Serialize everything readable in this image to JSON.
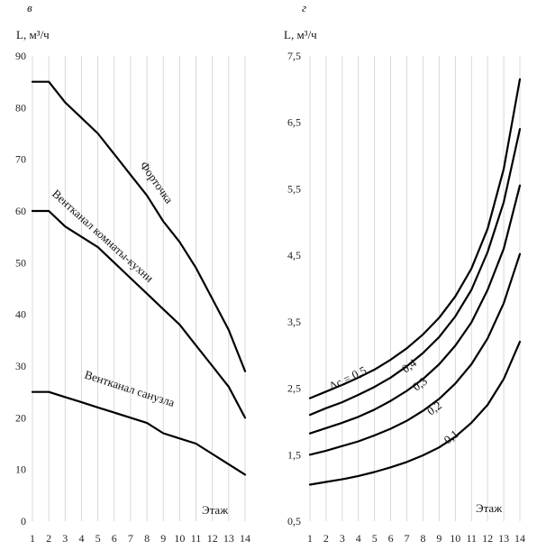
{
  "chart_data": [
    {
      "panel_label": "в",
      "type": "line",
      "ylabel": "L, м³/ч",
      "xlabel": "Этаж",
      "x": [
        1,
        2,
        3,
        4,
        5,
        6,
        7,
        8,
        9,
        10,
        11,
        12,
        13,
        14
      ],
      "x_ticks": [
        "1",
        "2",
        "3",
        "4",
        "5",
        "6",
        "7",
        "8",
        "9",
        "10",
        "11",
        "12",
        "13",
        "14"
      ],
      "y_ticks": [
        "0",
        "10",
        "20",
        "30",
        "40",
        "50",
        "60",
        "70",
        "80",
        "90"
      ],
      "ylim": [
        0,
        90
      ],
      "grid": "vertical",
      "series": [
        {
          "name": "Форточка",
          "values": [
            85,
            85,
            81,
            78,
            75,
            71,
            67,
            63,
            58,
            54,
            49,
            43,
            37,
            29
          ]
        },
        {
          "name": "Вентканал комнаты-кухни",
          "values": [
            60,
            60,
            57,
            55,
            53,
            50,
            47,
            44,
            41,
            38,
            34,
            30,
            26,
            20
          ]
        },
        {
          "name": "Вентканал санузла",
          "values": [
            25,
            25,
            24,
            23,
            22,
            21,
            20,
            19,
            17,
            16,
            15,
            13,
            11,
            9
          ]
        }
      ]
    },
    {
      "panel_label": "г",
      "type": "line",
      "ylabel": "L, м³/ч",
      "xlabel": "Этаж",
      "x": [
        1,
        2,
        3,
        4,
        5,
        6,
        7,
        8,
        9,
        10,
        11,
        12,
        13,
        14
      ],
      "x_ticks": [
        "1",
        "2",
        "3",
        "4",
        "5",
        "6",
        "7",
        "8",
        "9",
        "10",
        "11",
        "12",
        "13",
        "14"
      ],
      "y_ticks": [
        "0,5",
        "1,5",
        "2,5",
        "3,5",
        "4,5",
        "5,5",
        "6,5",
        "7,5"
      ],
      "ylim": [
        0.5,
        7.5
      ],
      "grid": "vertical",
      "series": [
        {
          "name": "Δc = 0,5",
          "values": [
            2.35,
            2.45,
            2.55,
            2.66,
            2.78,
            2.93,
            3.1,
            3.31,
            3.56,
            3.88,
            4.3,
            4.9,
            5.8,
            7.15
          ]
        },
        {
          "name": "0,4",
          "values": [
            2.1,
            2.2,
            2.29,
            2.4,
            2.52,
            2.66,
            2.83,
            3.03,
            3.27,
            3.58,
            3.98,
            4.55,
            5.3,
            6.4
          ]
        },
        {
          "name": "0,3",
          "values": [
            1.82,
            1.9,
            1.98,
            2.07,
            2.18,
            2.31,
            2.46,
            2.64,
            2.86,
            3.14,
            3.49,
            3.98,
            4.6,
            5.55
          ]
        },
        {
          "name": "0,2",
          "values": [
            1.5,
            1.56,
            1.63,
            1.7,
            1.79,
            1.89,
            2.01,
            2.16,
            2.34,
            2.57,
            2.86,
            3.25,
            3.78,
            4.52
          ]
        },
        {
          "name": "0,1",
          "values": [
            1.05,
            1.09,
            1.13,
            1.18,
            1.24,
            1.31,
            1.39,
            1.49,
            1.61,
            1.77,
            1.98,
            2.25,
            2.64,
            3.2
          ]
        }
      ]
    }
  ]
}
